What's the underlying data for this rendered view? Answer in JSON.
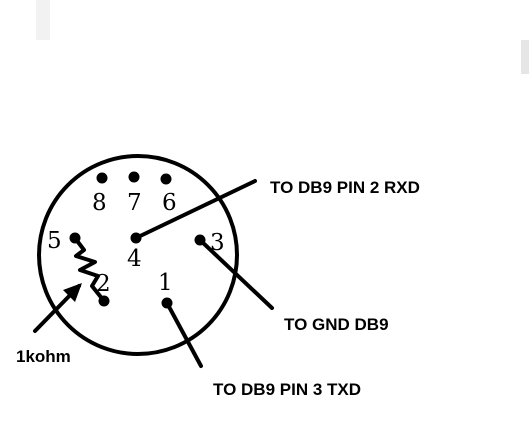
{
  "connector": {
    "pins": [
      {
        "id": "8",
        "label": "8"
      },
      {
        "id": "7",
        "label": "7"
      },
      {
        "id": "6",
        "label": "6"
      },
      {
        "id": "5",
        "label": "5"
      },
      {
        "id": "4",
        "label": "4"
      },
      {
        "id": "3",
        "label": "3"
      },
      {
        "id": "2",
        "label": "2"
      },
      {
        "id": "1",
        "label": "1"
      }
    ]
  },
  "callouts": {
    "pin4": "TO DB9 PIN 2 RXD",
    "pin3": "TO GND DB9",
    "pin1": "TO DB9 PIN 3 TXD",
    "resistor": "1kohm"
  }
}
